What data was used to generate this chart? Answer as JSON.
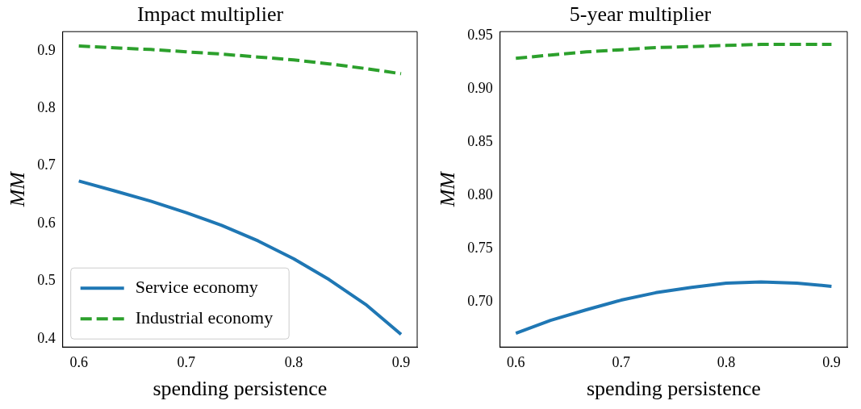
{
  "chart_data": [
    {
      "type": "line",
      "title": "Impact multiplier",
      "xlabel": "spending persistence",
      "ylabel": "MM",
      "x": [
        0.6,
        0.633,
        0.667,
        0.7,
        0.733,
        0.767,
        0.8,
        0.833,
        0.867,
        0.9
      ],
      "series": [
        {
          "name": "Service economy",
          "color": "#1f77b4",
          "line_style": "solid",
          "values": [
            0.674,
            0.657,
            0.639,
            0.619,
            0.597,
            0.57,
            0.539,
            0.503,
            0.46,
            0.408
          ]
        },
        {
          "name": "Industrial economy",
          "color": "#2ca02c",
          "line_style": "dashed",
          "values": [
            0.908,
            0.905,
            0.902,
            0.898,
            0.894,
            0.889,
            0.884,
            0.877,
            0.869,
            0.86
          ]
        }
      ],
      "xlim": [
        0.585,
        0.915
      ],
      "xticks": [
        0.6,
        0.7,
        0.8,
        0.9
      ],
      "ylim": [
        0.386,
        0.933
      ],
      "yticks": [
        0.4,
        0.5,
        0.6,
        0.7,
        0.8,
        0.9
      ],
      "grid": false,
      "legend": "bottom left",
      "marker": "none"
    },
    {
      "type": "line",
      "title": "5-year multiplier",
      "xlabel": "spending persistence",
      "ylabel": "MM",
      "x": [
        0.6,
        0.633,
        0.667,
        0.7,
        0.733,
        0.767,
        0.8,
        0.833,
        0.867,
        0.9
      ],
      "series": [
        {
          "color": "#1f77b4",
          "line_style": "solid",
          "values": [
            0.671,
            0.683,
            0.693,
            0.702,
            0.709,
            0.714,
            0.718,
            0.719,
            0.718,
            0.715
          ]
        },
        {
          "color": "#2ca02c",
          "line_style": "dashed",
          "values": [
            0.929,
            0.932,
            0.935,
            0.937,
            0.939,
            0.94,
            0.941,
            0.942,
            0.942,
            0.942
          ]
        }
      ],
      "xlim": [
        0.585,
        0.915
      ],
      "xticks": [
        0.6,
        0.7,
        0.8,
        0.9
      ],
      "ylim": [
        0.658,
        0.954
      ],
      "yticks": [
        {
          "value": 0.7,
          "label": "0.70"
        },
        0.75,
        {
          "value": 0.8,
          "label": "0.80"
        },
        0.85,
        {
          "value": 0.9,
          "label": "0.90"
        },
        0.95
      ],
      "grid": false,
      "legend": false,
      "marker": "none"
    }
  ]
}
